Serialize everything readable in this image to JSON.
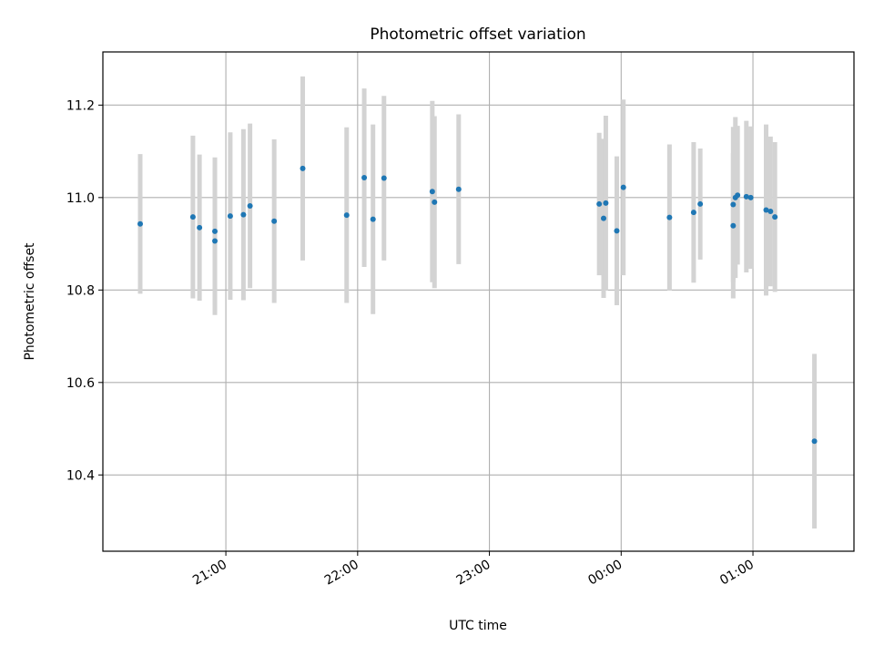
{
  "chart_data": {
    "type": "scatter",
    "title": "Photometric offset variation",
    "xlabel": "UTC time",
    "ylabel": "Photometric offset",
    "xlim": [
      "20:04",
      "01:46"
    ],
    "ylim": [
      10.235,
      11.315
    ],
    "xticks": [
      {
        "value": "21:00",
        "label": "21:00"
      },
      {
        "value": "22:00",
        "label": "22:00"
      },
      {
        "value": "23:00",
        "label": "23:00"
      },
      {
        "value": "00:00",
        "label": "00:00"
      },
      {
        "value": "01:00",
        "label": "01:00"
      }
    ],
    "yticks": [
      {
        "value": 10.4,
        "label": "10.4"
      },
      {
        "value": 10.6,
        "label": "10.6"
      },
      {
        "value": 10.8,
        "label": "10.8"
      },
      {
        "value": 11.0,
        "label": "11.0"
      },
      {
        "value": 11.2,
        "label": "11.2"
      }
    ],
    "grid": true,
    "colors": {
      "point": "#1f77b4",
      "errorbar": "#d3d3d3",
      "grid": "#b0b0b0"
    },
    "points": [
      {
        "x": "20:21",
        "y": 10.943,
        "err": 0.151
      },
      {
        "x": "20:45",
        "y": 10.958,
        "err": 0.176
      },
      {
        "x": "20:48",
        "y": 10.935,
        "err": 0.158
      },
      {
        "x": "20:55",
        "y": 10.927,
        "err": 0.16
      },
      {
        "x": "20:55",
        "y": 10.906,
        "err": 0.16
      },
      {
        "x": "21:02",
        "y": 10.96,
        "err": 0.181
      },
      {
        "x": "21:08",
        "y": 10.963,
        "err": 0.185
      },
      {
        "x": "21:11",
        "y": 10.982,
        "err": 0.178
      },
      {
        "x": "21:22",
        "y": 10.949,
        "err": 0.177
      },
      {
        "x": "21:35",
        "y": 11.063,
        "err": 0.199
      },
      {
        "x": "21:55",
        "y": 10.962,
        "err": 0.19
      },
      {
        "x": "22:03",
        "y": 11.043,
        "err": 0.193
      },
      {
        "x": "22:07",
        "y": 10.953,
        "err": 0.205
      },
      {
        "x": "22:12",
        "y": 11.042,
        "err": 0.178
      },
      {
        "x": "22:34",
        "y": 11.013,
        "err": 0.196
      },
      {
        "x": "22:35",
        "y": 10.99,
        "err": 0.186
      },
      {
        "x": "22:46",
        "y": 11.018,
        "err": 0.162
      },
      {
        "x": "23:50",
        "y": 10.986,
        "err": 0.154
      },
      {
        "x": "23:52",
        "y": 10.955,
        "err": 0.172
      },
      {
        "x": "23:53",
        "y": 10.988,
        "err": 0.189
      },
      {
        "x": "23:58",
        "y": 10.928,
        "err": 0.161
      },
      {
        "x": "00:01",
        "y": 11.022,
        "err": 0.19
      },
      {
        "x": "00:22",
        "y": 10.957,
        "err": 0.158
      },
      {
        "x": "00:33",
        "y": 10.968,
        "err": 0.152
      },
      {
        "x": "00:36",
        "y": 10.986,
        "err": 0.12
      },
      {
        "x": "00:51",
        "y": 10.985,
        "err": 0.168
      },
      {
        "x": "00:51",
        "y": 10.939,
        "err": 0.157
      },
      {
        "x": "00:52",
        "y": 11.0,
        "err": 0.174
      },
      {
        "x": "00:53",
        "y": 11.005,
        "err": 0.15
      },
      {
        "x": "00:57",
        "y": 11.002,
        "err": 0.164
      },
      {
        "x": "00:59",
        "y": 11.0,
        "err": 0.154
      },
      {
        "x": "01:06",
        "y": 10.973,
        "err": 0.185
      },
      {
        "x": "01:08",
        "y": 10.97,
        "err": 0.162
      },
      {
        "x": "01:10",
        "y": 10.958,
        "err": 0.162
      },
      {
        "x": "01:28",
        "y": 10.473,
        "err": 0.189
      }
    ]
  }
}
